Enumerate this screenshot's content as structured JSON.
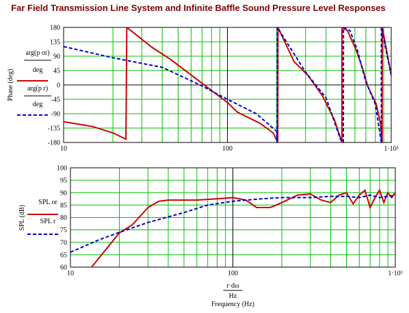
{
  "chart_data": [
    {
      "type": "line",
      "title": "Far Field Transmission Line System and Infinite Baffle Sound Pressure Level Responses",
      "ylabel": "Phase (deg)",
      "legend_unit": "deg",
      "xscale": "log",
      "xlim": [
        10,
        1000
      ],
      "xticks": [
        10,
        100,
        {
          "value": 1000,
          "label": "1·10³"
        }
      ],
      "xgrid": [
        20,
        30,
        40,
        50,
        60,
        70,
        80,
        90,
        200,
        300,
        400,
        500,
        600,
        700,
        800,
        900
      ],
      "ylim": [
        -180,
        180
      ],
      "yticks": [
        180,
        135,
        90,
        45,
        0,
        -45,
        -90,
        -135,
        -180
      ],
      "grid": true,
      "series": [
        {
          "name": "arg(p or)",
          "color": "#cc0000",
          "dash": false,
          "x": [
            10,
            15,
            20,
            24,
            24.3,
            35,
            45,
            73,
            100,
            115,
            158,
            190,
            203,
            203.5,
            255,
            310,
            380,
            450,
            500,
            500.5,
            540,
            610,
            670,
            720,
            810,
            860,
            880,
            882,
            1000
          ],
          "values": [
            -115,
            -130,
            -150,
            -170,
            180,
            116,
            80,
            -2,
            -55,
            -85,
            -120,
            -150,
            -180,
            180,
            73,
            30,
            -34,
            -109,
            -180,
            180,
            170,
            110,
            50,
            -5,
            -60,
            -120,
            -180,
            180,
            30
          ]
        },
        {
          "name": "arg(p r)",
          "color": "#0000cc",
          "dash": true,
          "x": [
            10,
            20,
            40,
            68,
            100,
            150,
            200,
            201,
            201.5,
            300,
            400,
            490,
            510,
            511,
            560,
            620,
            700,
            800,
            870,
            871,
            1000
          ],
          "values": [
            120,
            85,
            55,
            0,
            -45,
            -90,
            -145,
            -180,
            180,
            40,
            -40,
            -170,
            -180,
            180,
            170,
            110,
            10,
            -60,
            -180,
            180,
            30
          ]
        }
      ]
    },
    {
      "type": "line",
      "ylabel": "SPL (dB)",
      "xlabel_numerator": "r·dω",
      "xlabel_denominator": "Hz",
      "xlabel": "Frequency (Hz)",
      "xscale": "log",
      "xlim": [
        10,
        1000
      ],
      "xticks": [
        10,
        100,
        {
          "value": 1000,
          "label": "1·10³"
        }
      ],
      "xgrid": [
        20,
        30,
        40,
        50,
        60,
        70,
        80,
        90,
        200,
        300,
        400,
        500,
        600,
        700,
        800,
        900
      ],
      "ylim": [
        60,
        100
      ],
      "yticks": [
        100,
        95,
        90,
        85,
        80,
        75,
        70,
        65,
        60
      ],
      "grid": true,
      "series": [
        {
          "name": "SPL or",
          "color": "#cc0000",
          "dash": false,
          "x": [
            13.5,
            20,
            24,
            30,
            35,
            40,
            60,
            80,
            100,
            120,
            140,
            170,
            200,
            250,
            300,
            350,
            400,
            450,
            500,
            550,
            600,
            650,
            700,
            750,
            800,
            850,
            900,
            950,
            1000
          ],
          "values": [
            60,
            73.8,
            77,
            84,
            86.5,
            87,
            87,
            87.5,
            88,
            87,
            84,
            84,
            86,
            89,
            89.5,
            87,
            86,
            89,
            90,
            85.5,
            89,
            91,
            84,
            88,
            91,
            86,
            90,
            88,
            90
          ]
        },
        {
          "name": "SPL r",
          "color": "#0000cc",
          "dash": true,
          "x": [
            10,
            15,
            20,
            30,
            50,
            70,
            100,
            150,
            200,
            300,
            400,
            500,
            600,
            700,
            800,
            1000
          ],
          "values": [
            66,
            71,
            74,
            78,
            82,
            85,
            86.5,
            87.5,
            88,
            88,
            88.5,
            88.5,
            88,
            89,
            88,
            89
          ]
        }
      ]
    }
  ]
}
